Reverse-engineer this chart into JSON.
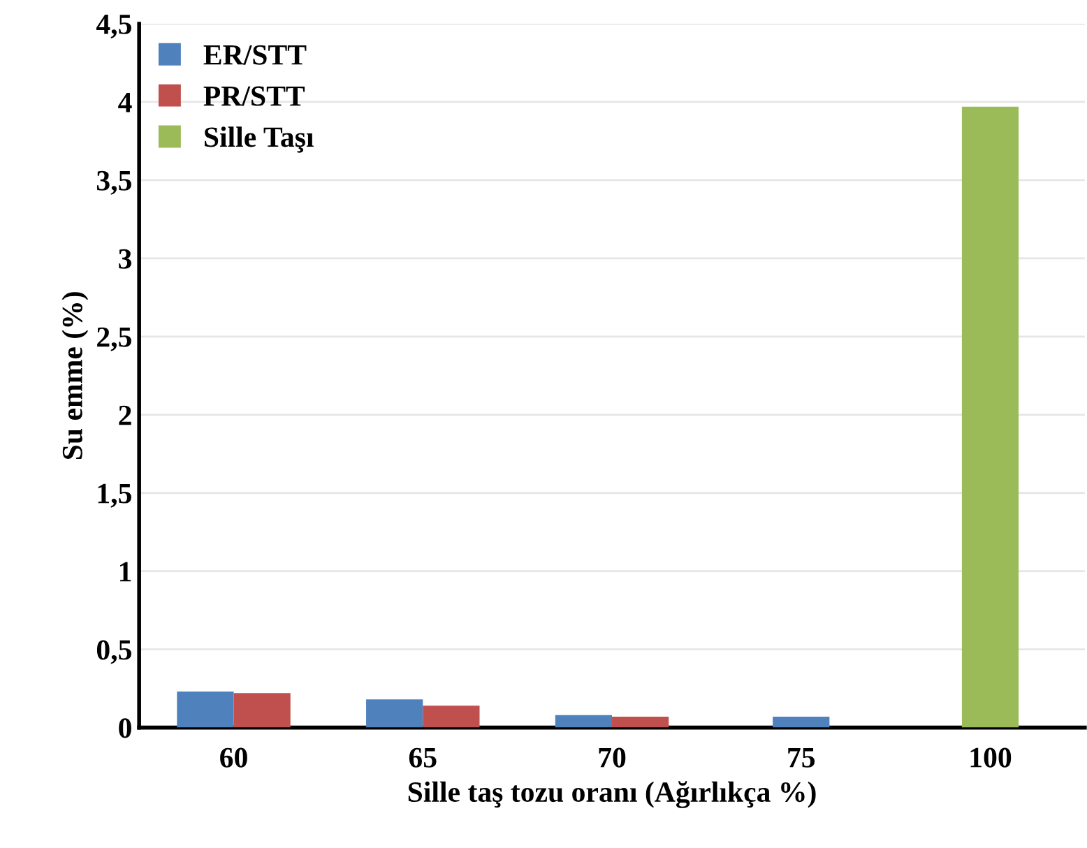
{
  "chart_data": {
    "type": "bar",
    "xlabel": "Sille taş tozu oranı (Ağırlıkça %)",
    "ylabel": "Su emme (%)",
    "categories": [
      "60",
      "65",
      "70",
      "75",
      "100"
    ],
    "series": [
      {
        "name": "ER/STT",
        "color": "#4f81bd",
        "values": [
          0.23,
          0.18,
          0.08,
          0.07,
          null
        ]
      },
      {
        "name": "PR/STT",
        "color": "#c0504d",
        "values": [
          0.22,
          0.14,
          0.07,
          null,
          null
        ]
      },
      {
        "name": "Sille Taşı",
        "color": "#9bbb59",
        "values": [
          null,
          null,
          null,
          null,
          3.97
        ]
      }
    ],
    "ylim": [
      0,
      4.5
    ],
    "yticks": [
      0,
      {
        "value": 0.5,
        "label": "0,5"
      },
      1,
      {
        "value": 1.5,
        "label": "1,5"
      },
      2,
      {
        "value": 2.5,
        "label": "2,5"
      },
      3,
      {
        "value": 3.5,
        "label": "3,5"
      },
      4,
      {
        "value": 4.5,
        "label": "4,5"
      }
    ],
    "grid": "y",
    "legend": "top left"
  }
}
